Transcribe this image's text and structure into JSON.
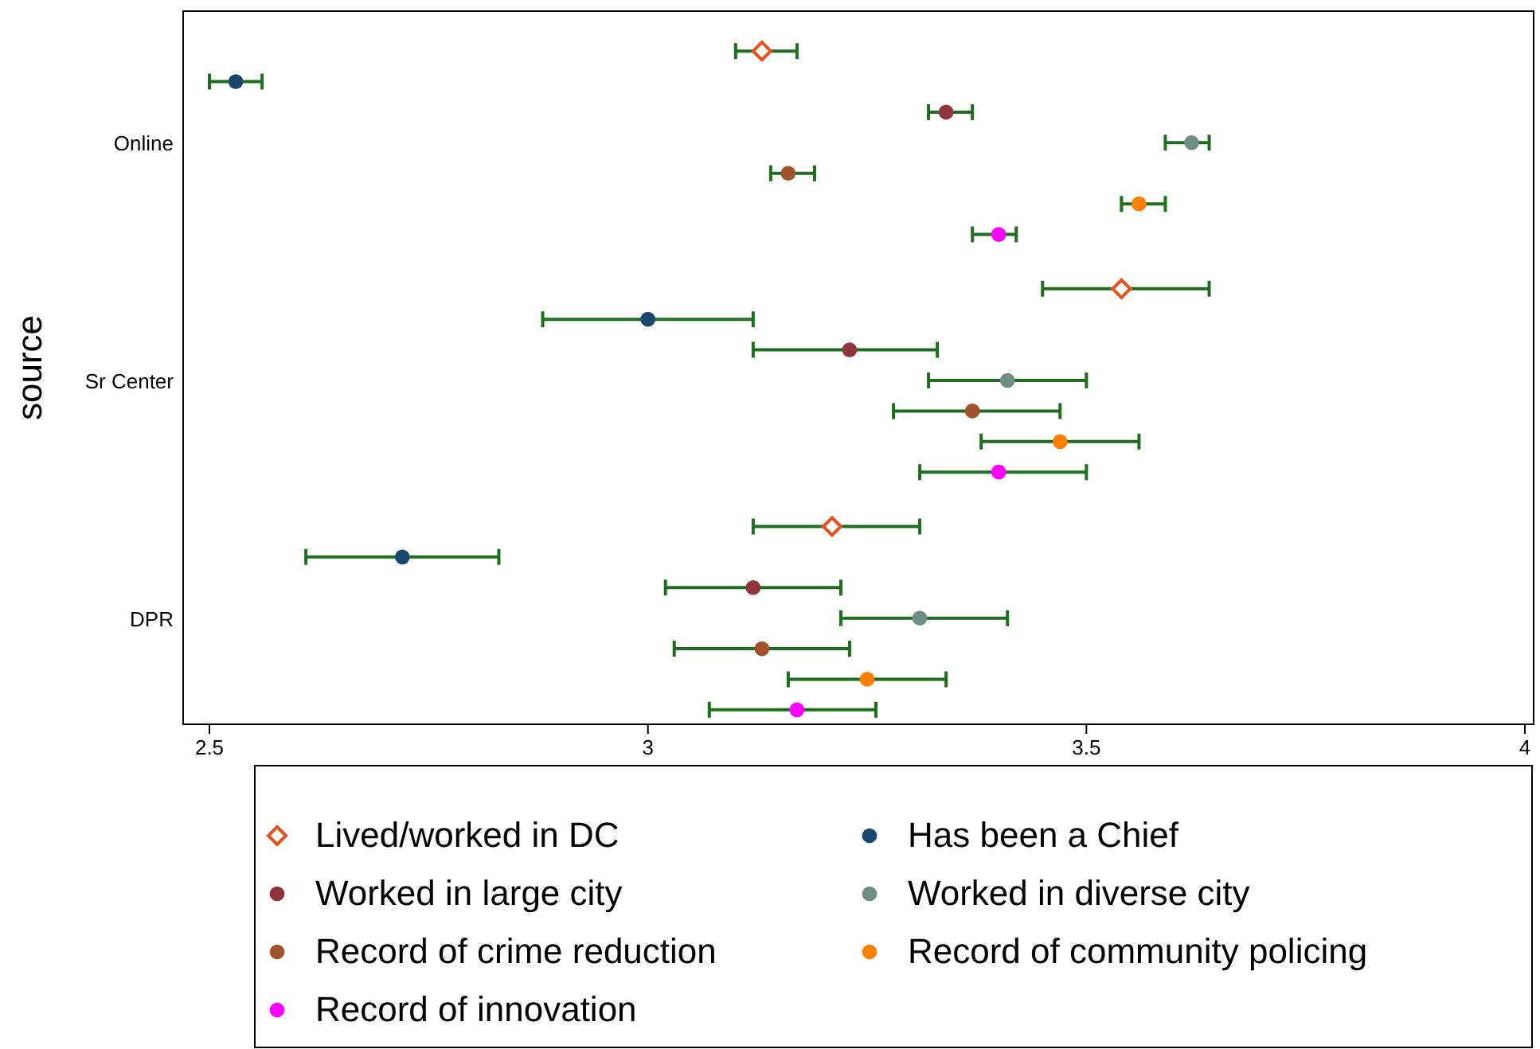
{
  "chart_data": {
    "type": "scatter",
    "orientation": "horizontal",
    "ylabel": "source",
    "categories": [
      "Online",
      "Sr Center",
      "DPR"
    ],
    "xlim": [
      2.47,
      4.01
    ],
    "xticks": [
      2.5,
      3,
      3.5,
      4
    ],
    "grid": false,
    "legend": "bottom",
    "series": [
      {
        "name": "Lived/worked in DC",
        "color": "#e8501e",
        "marker": "diamond",
        "values": [
          3.13,
          3.54,
          3.21
        ],
        "errors": [
          [
            3.1,
            3.17
          ],
          [
            3.45,
            3.64
          ],
          [
            3.12,
            3.31
          ]
        ]
      },
      {
        "name": "Has been a Chief",
        "color": "#1a476f",
        "marker": "circle",
        "values": [
          2.53,
          3.0,
          2.72
        ],
        "errors": [
          [
            2.5,
            2.56
          ],
          [
            2.88,
            3.12
          ],
          [
            2.61,
            2.83
          ]
        ]
      },
      {
        "name": "Worked in large city",
        "color": "#90353b",
        "marker": "circle",
        "values": [
          3.34,
          3.23,
          3.12
        ],
        "errors": [
          [
            3.32,
            3.37
          ],
          [
            3.12,
            3.33
          ],
          [
            3.02,
            3.22
          ]
        ]
      },
      {
        "name": "Worked in diverse city",
        "color": "#6e8e84",
        "marker": "circle",
        "values": [
          3.62,
          3.41,
          3.31
        ],
        "errors": [
          [
            3.59,
            3.64
          ],
          [
            3.32,
            3.5
          ],
          [
            3.22,
            3.41
          ]
        ]
      },
      {
        "name": "Record of crime reduction",
        "color": "#a0522d",
        "marker": "circle",
        "values": [
          3.16,
          3.37,
          3.13
        ],
        "errors": [
          [
            3.14,
            3.19
          ],
          [
            3.28,
            3.47
          ],
          [
            3.03,
            3.23
          ]
        ]
      },
      {
        "name": "Record of community policing",
        "color": "#ff7f00",
        "marker": "circle",
        "values": [
          3.56,
          3.47,
          3.25
        ],
        "errors": [
          [
            3.54,
            3.59
          ],
          [
            3.38,
            3.56
          ],
          [
            3.16,
            3.34
          ]
        ]
      },
      {
        "name": "Record of innovation",
        "color": "#ff00ff",
        "marker": "circle",
        "values": [
          3.4,
          3.4,
          3.17
        ],
        "errors": [
          [
            3.37,
            3.42
          ],
          [
            3.31,
            3.5
          ],
          [
            3.07,
            3.26
          ]
        ]
      }
    ]
  }
}
